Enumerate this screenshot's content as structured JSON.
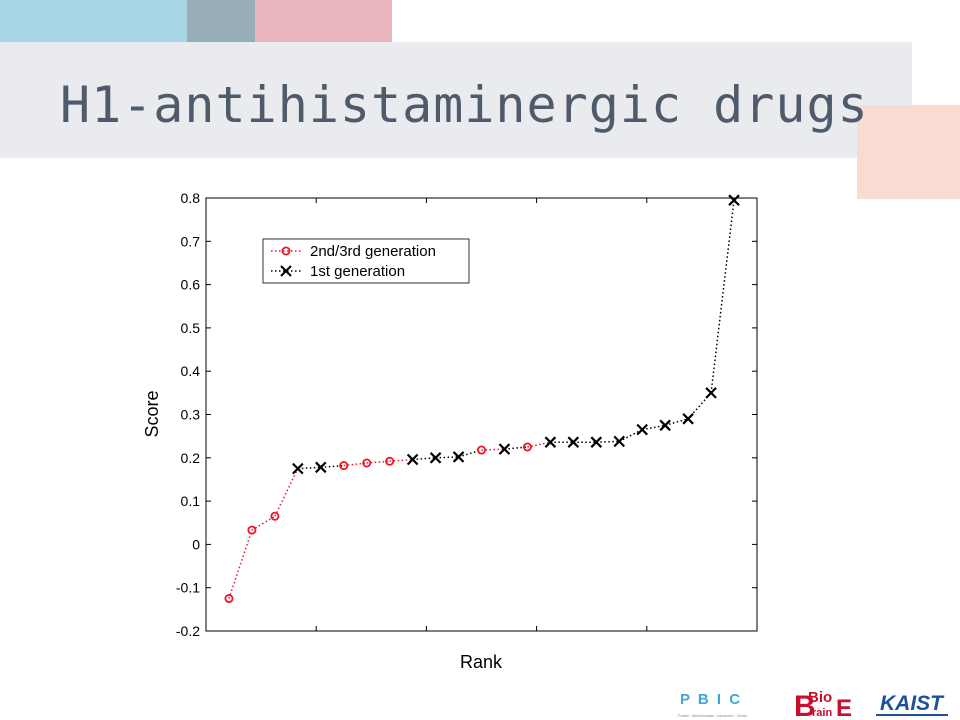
{
  "slide": {
    "title": "H1-antihistaminergic drugs",
    "colors": {
      "block_blue": "#a9d6e4",
      "block_grey": "#97adb8",
      "block_pink": "#e9b6bd",
      "block_peach": "#f9dcd1",
      "title_band": "#e9ebef",
      "title_text": "#4f5a6a"
    }
  },
  "chart_data": {
    "type": "line",
    "xlabel": "Rank",
    "ylabel": "Score",
    "ylim": [
      -0.2,
      0.8
    ],
    "yticks": [
      "0.8",
      "0.7",
      "0.6",
      "0.5",
      "0.4",
      "0.3",
      "0.2",
      "0.1",
      "0",
      "-0.1",
      "-0.2"
    ],
    "xlim": [
      0,
      24
    ],
    "grid": false,
    "legend_position": "top-left",
    "series": [
      {
        "name": "2nd/3rd generation",
        "marker": "circle",
        "line_style": "dotted",
        "color": "#e8182a",
        "x": [
          1,
          2,
          3,
          6,
          7,
          8,
          12,
          14
        ],
        "y": [
          -0.125,
          0.033,
          0.065,
          0.182,
          0.188,
          0.192,
          0.218,
          0.225
        ]
      },
      {
        "name": "1st generation",
        "marker": "x",
        "line_style": "dotted",
        "color": "#000000",
        "x": [
          4,
          5,
          9,
          10,
          11,
          13,
          15,
          16,
          17,
          18,
          19,
          20,
          21,
          22,
          23
        ],
        "y": [
          0.175,
          0.178,
          0.196,
          0.2,
          0.202,
          0.22,
          0.236,
          0.236,
          0.236,
          0.238,
          0.265,
          0.275,
          0.29,
          0.35,
          0.795
        ]
      }
    ],
    "combined_line": {
      "color": "#000000",
      "line_style": "dotted"
    }
  },
  "footer": {
    "logo_pbic": "P B I C",
    "logo_pbic_caption": "Protein · Bioinformatics · Interaction · Center",
    "logo_biobrain_top": "Bio",
    "logo_biobrain_mid": "rain",
    "logo_biobrain_b": "B",
    "logo_biobrain_e": "E",
    "logo_kaist": "KAIST"
  }
}
